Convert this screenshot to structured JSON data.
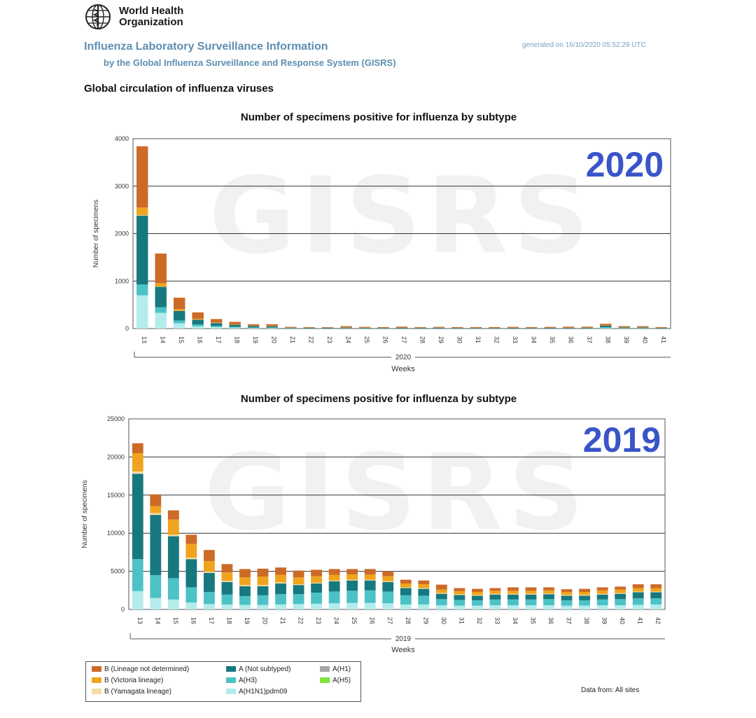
{
  "header": {
    "org_line1": "World Health",
    "org_line2": "Organization",
    "title": "Influenza Laboratory Surveillance Information",
    "subtitle": "by the Global Influenza Surveillance and Response System (GISRS)",
    "generated": "generated on 16/10/2020 05:52:29 UTC",
    "section_title": "Global circulation of influenza viruses"
  },
  "watermark": "GISRS",
  "colors": {
    "B_lineage_not_determined": "#cc6a28",
    "B_victoria": "#f0a41e",
    "B_yamagata": "#f3dca6",
    "A_not_subtyped": "#17797f",
    "A_H3": "#4cc2c6",
    "A_H1N1pdm09": "#b4ecec",
    "A_H1": "#a6a6a6",
    "A_H5": "#7fe33a",
    "year_label": "#3a55c8",
    "grid": "#333333"
  },
  "legend": [
    {
      "key": "B_lineage_not_determined",
      "label": "B (Lineage not determined)"
    },
    {
      "key": "B_victoria",
      "label": "B (Victoria lineage)"
    },
    {
      "key": "B_yamagata",
      "label": "B (Yamagata lineage)"
    },
    {
      "key": "A_not_subtyped",
      "label": "A (Not subtyped)"
    },
    {
      "key": "A_H3",
      "label": "A(H3)"
    },
    {
      "key": "A_H1N1pdm09",
      "label": "A(H1N1)pdm09"
    },
    {
      "key": "A_H1",
      "label": "A(H1)"
    },
    {
      "key": "A_H5",
      "label": "A(H5)"
    }
  ],
  "footer": {
    "data_from": "Data from: All sites"
  },
  "chart_data": [
    {
      "type": "bar",
      "stacked": true,
      "title": "Number of specimens positive for influenza by subtype",
      "year_label": "2020",
      "ylabel": "Number of specimens",
      "xlabel": "Weeks",
      "year_axis_label": "2020",
      "ylim": [
        0,
        4000
      ],
      "yticks": [
        0,
        1000,
        2000,
        3000,
        4000
      ],
      "categories": [
        "13",
        "14",
        "15",
        "16",
        "17",
        "18",
        "19",
        "20",
        "21",
        "22",
        "23",
        "24",
        "25",
        "26",
        "27",
        "28",
        "29",
        "30",
        "31",
        "32",
        "33",
        "34",
        "35",
        "36",
        "37",
        "38",
        "39",
        "40",
        "41"
      ],
      "series": [
        {
          "key": "A_H1N1pdm09",
          "values": [
            700,
            330,
            110,
            45,
            30,
            20,
            12,
            10,
            5,
            4,
            4,
            5,
            4,
            3,
            4,
            3,
            4,
            3,
            3,
            3,
            4,
            3,
            4,
            4,
            4,
            10,
            5,
            5,
            3
          ]
        },
        {
          "key": "A_H3",
          "values": [
            230,
            120,
            60,
            40,
            25,
            15,
            10,
            10,
            4,
            3,
            3,
            4,
            4,
            3,
            3,
            3,
            3,
            3,
            3,
            3,
            3,
            3,
            3,
            4,
            4,
            15,
            6,
            6,
            3
          ]
        },
        {
          "key": "A_not_subtyped",
          "values": [
            1450,
            430,
            200,
            100,
            60,
            45,
            30,
            25,
            10,
            8,
            10,
            12,
            8,
            7,
            8,
            8,
            10,
            7,
            7,
            7,
            8,
            7,
            8,
            8,
            8,
            35,
            12,
            12,
            8
          ]
        },
        {
          "key": "B_yamagata",
          "values": [
            10,
            5,
            3,
            2,
            1,
            1,
            1,
            1,
            0,
            0,
            0,
            0,
            0,
            0,
            0,
            0,
            0,
            0,
            0,
            0,
            0,
            0,
            0,
            0,
            0,
            0,
            0,
            0,
            0
          ]
        },
        {
          "key": "B_victoria",
          "values": [
            160,
            70,
            35,
            20,
            12,
            8,
            5,
            5,
            2,
            2,
            2,
            3,
            2,
            2,
            2,
            2,
            2,
            2,
            2,
            2,
            2,
            2,
            2,
            2,
            2,
            5,
            3,
            3,
            2
          ]
        },
        {
          "key": "B_lineage_not_determined",
          "values": [
            1290,
            625,
            242,
            133,
            72,
            51,
            32,
            39,
            14,
            13,
            11,
            26,
            17,
            15,
            23,
            14,
            16,
            15,
            15,
            15,
            18,
            15,
            18,
            22,
            22,
            35,
            24,
            24,
            14
          ]
        }
      ]
    },
    {
      "type": "bar",
      "stacked": true,
      "title": "Number of specimens positive for influenza by subtype",
      "year_label": "2019",
      "ylabel": "Number of specimens",
      "xlabel": "Weeks",
      "year_axis_label": "2019",
      "ylim": [
        0,
        25000
      ],
      "yticks": [
        0,
        5000,
        10000,
        15000,
        20000,
        25000
      ],
      "categories": [
        "13",
        "14",
        "15",
        "16",
        "17",
        "18",
        "19",
        "20",
        "21",
        "22",
        "23",
        "24",
        "25",
        "26",
        "27",
        "28",
        "29",
        "30",
        "31",
        "32",
        "33",
        "34",
        "35",
        "36",
        "37",
        "38",
        "39",
        "40",
        "41",
        "42"
      ],
      "series": [
        {
          "key": "A_H1N1pdm09",
          "values": [
            2400,
            1500,
            1300,
            900,
            700,
            650,
            600,
            600,
            650,
            700,
            750,
            800,
            850,
            850,
            800,
            650,
            650,
            550,
            500,
            500,
            550,
            550,
            550,
            550,
            500,
            500,
            550,
            550,
            600,
            650
          ]
        },
        {
          "key": "A_H3",
          "values": [
            4200,
            3000,
            2800,
            2000,
            1600,
            1300,
            1150,
            1250,
            1350,
            1300,
            1450,
            1550,
            1600,
            1650,
            1550,
            1200,
            1150,
            800,
            750,
            700,
            750,
            750,
            750,
            800,
            700,
            700,
            750,
            800,
            850,
            800
          ]
        },
        {
          "key": "A_not_subtyped",
          "values": [
            11200,
            7900,
            5500,
            3700,
            2500,
            1650,
            1300,
            1200,
            1400,
            1200,
            1200,
            1350,
            1350,
            1300,
            1250,
            950,
            900,
            700,
            650,
            600,
            650,
            650,
            650,
            650,
            600,
            600,
            650,
            700,
            800,
            800
          ]
        },
        {
          "key": "B_yamagata",
          "values": [
            300,
            250,
            200,
            200,
            150,
            150,
            150,
            150,
            150,
            100,
            100,
            100,
            100,
            100,
            100,
            100,
            100,
            100,
            100,
            100,
            100,
            100,
            100,
            100,
            100,
            100,
            100,
            100,
            100,
            100
          ]
        },
        {
          "key": "B_victoria",
          "values": [
            2400,
            900,
            2000,
            1800,
            1400,
            1100,
            1000,
            1100,
            1000,
            900,
            850,
            750,
            700,
            700,
            650,
            500,
            500,
            450,
            400,
            400,
            400,
            400,
            400,
            400,
            400,
            400,
            450,
            450,
            450,
            450
          ]
        },
        {
          "key": "B_lineage_not_determined",
          "values": [
            1300,
            1550,
            1200,
            1200,
            1450,
            1100,
            1100,
            1050,
            950,
            900,
            850,
            750,
            700,
            700,
            650,
            500,
            500,
            650,
            400,
            400,
            350,
            450,
            450,
            400,
            350,
            400,
            400,
            400,
            500,
            500
          ]
        }
      ]
    }
  ]
}
